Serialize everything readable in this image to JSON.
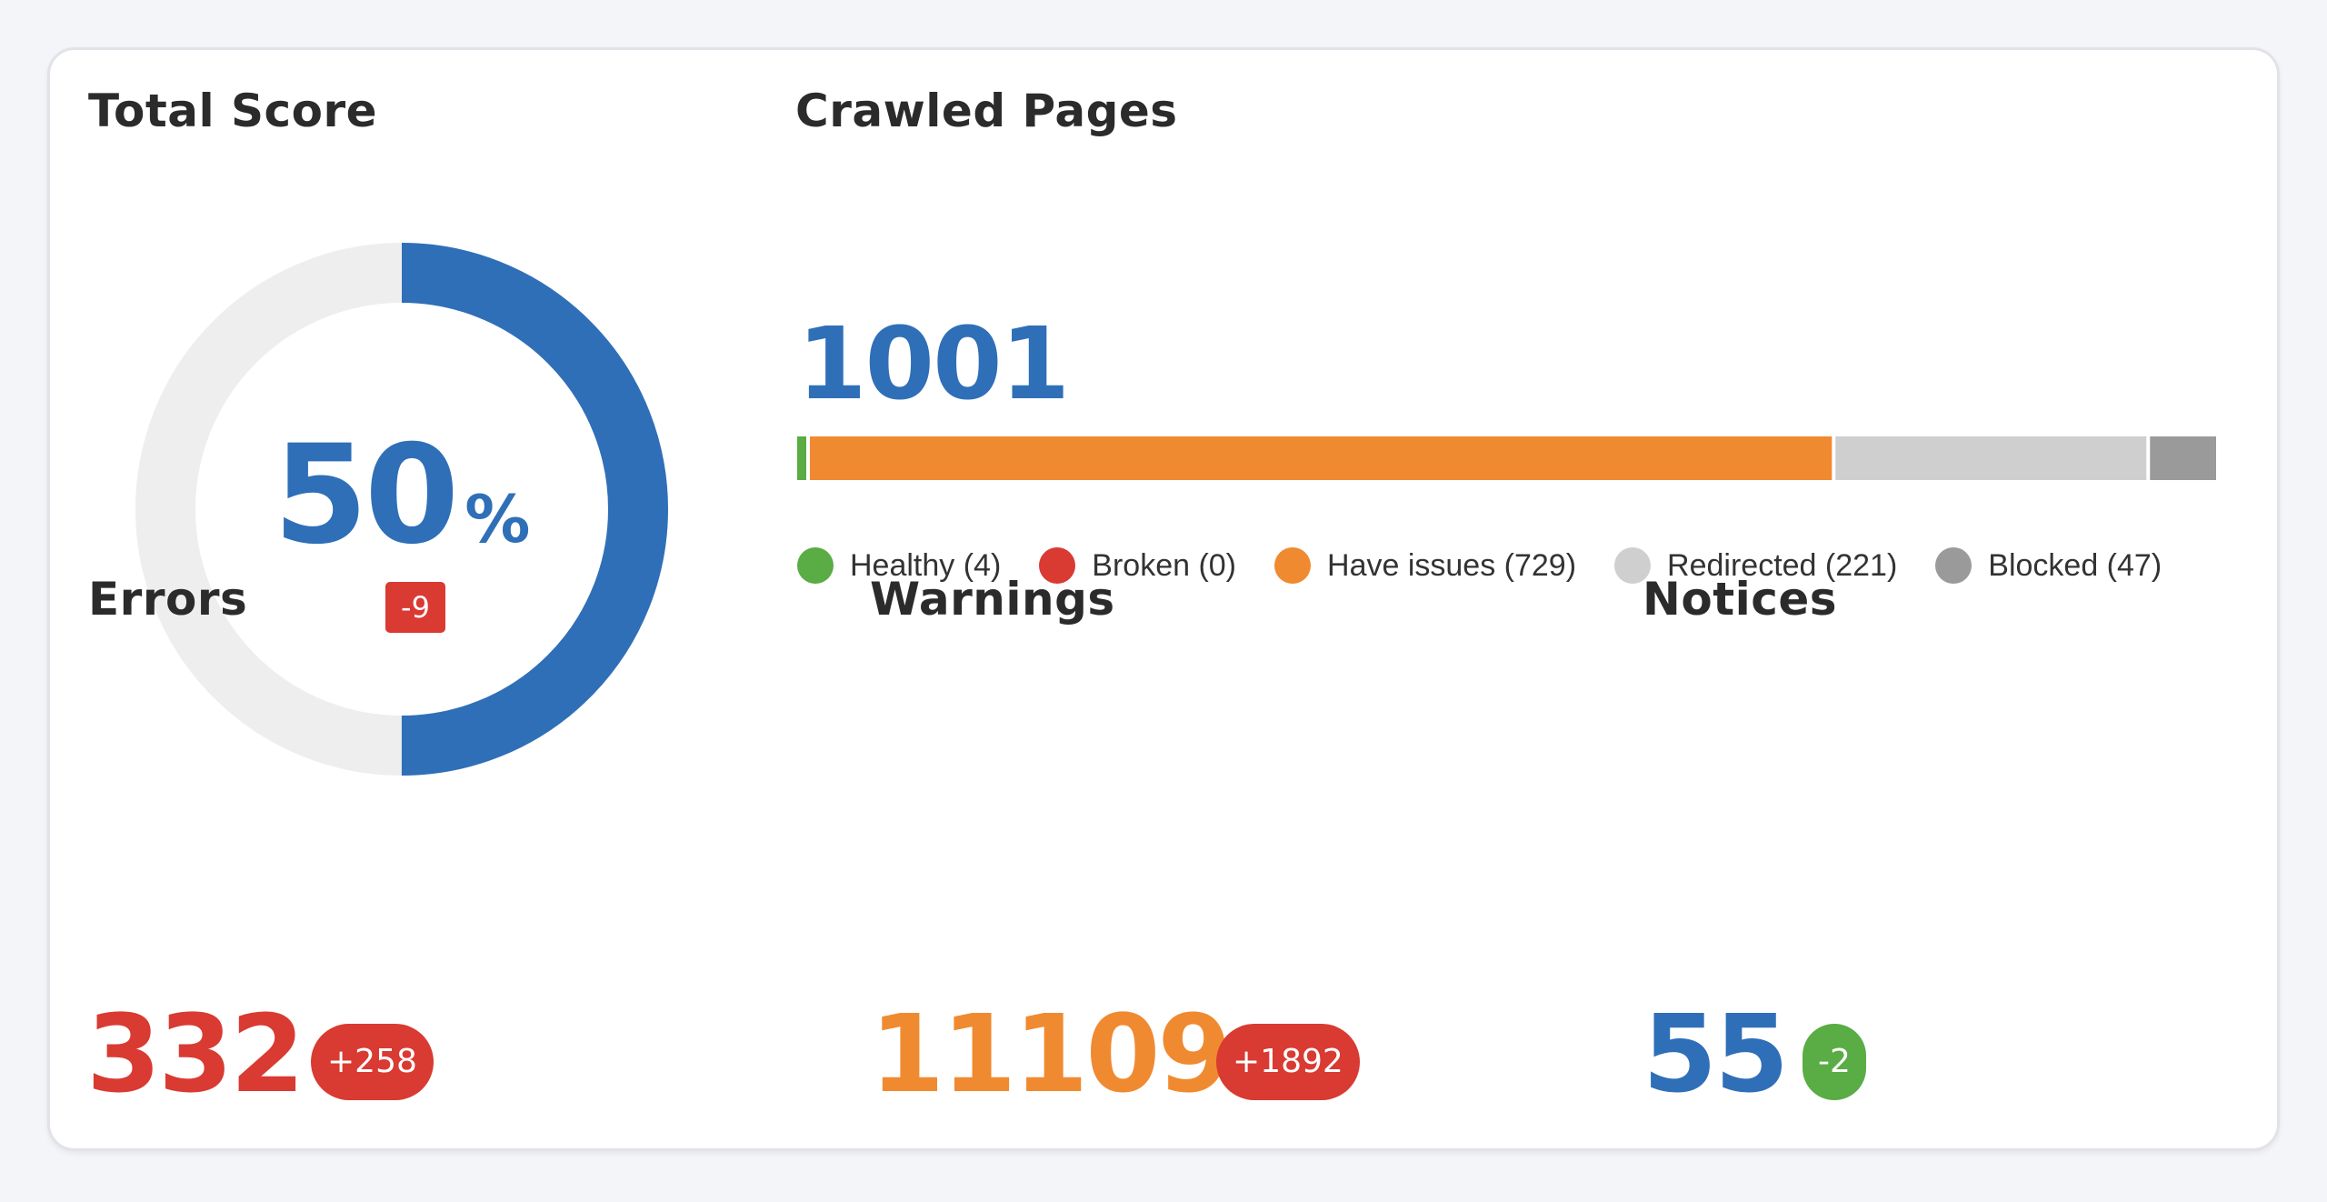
{
  "total_score": {
    "title": "Total Score",
    "value": "50",
    "unit": "%",
    "percent": 50,
    "delta": "-9"
  },
  "crawled_pages": {
    "title": "Crawled Pages",
    "total": "1001",
    "segments": [
      {
        "key": "healthy",
        "label": "Healthy (4)",
        "count": 4,
        "color": "#5aac44"
      },
      {
        "key": "broken",
        "label": "Broken (0)",
        "count": 0,
        "color": "#d93a32"
      },
      {
        "key": "have-issues",
        "label": "Have issues (729)",
        "count": 729,
        "color": "#f08a30"
      },
      {
        "key": "redirected",
        "label": "Redirected (221)",
        "count": 221,
        "color": "#cfcfcf"
      },
      {
        "key": "blocked",
        "label": "Blocked (47)",
        "count": 47,
        "color": "#9a9a9a"
      }
    ]
  },
  "errors": {
    "title": "Errors",
    "value": "332",
    "delta": "+258"
  },
  "warnings": {
    "title": "Warnings",
    "value": "11109",
    "delta": "+1892"
  },
  "notices": {
    "title": "Notices",
    "value": "55",
    "delta": "-2"
  },
  "colors": {
    "blue": "#2f6fb8",
    "red": "#d93a32",
    "orange": "#f08a30",
    "green": "#5aac44",
    "track": "#eeeeee"
  }
}
